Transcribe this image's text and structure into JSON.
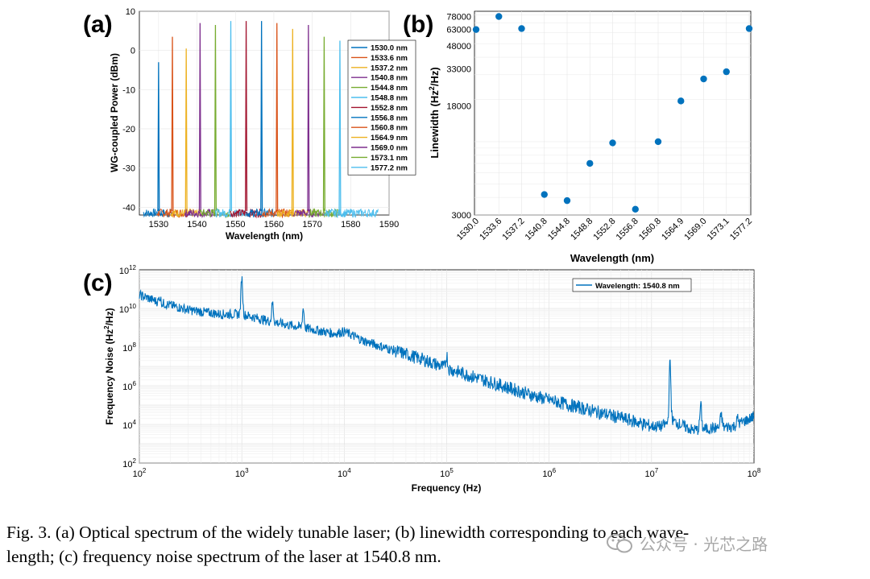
{
  "figure": {
    "caption_line1": "Fig. 3. (a) Optical spectrum of the widely tunable laser; (b) linewidth corresponding to each wave-",
    "caption_line2": "length; (c) frequency noise spectrum of the laser at 1540.8 nm.",
    "watermark": "公众号 · 光芯之路"
  },
  "chart_data": [
    {
      "panel": "(a)",
      "type": "line",
      "xlabel": "Wavelength (nm)",
      "ylabel": "WG-coupled Power (dBm)",
      "xlim": [
        1525,
        1590
      ],
      "ylim": [
        -42,
        10
      ],
      "xticks": [
        1530,
        1540,
        1550,
        1560,
        1570,
        1580,
        1590
      ],
      "yticks": [
        10,
        0,
        -10,
        -20,
        -30,
        -40
      ],
      "legend_position": "right",
      "noise_floor_dBm": -41,
      "series": [
        {
          "name": "1530.0 nm",
          "wavelength": 1530.0,
          "peak": -3,
          "color": "#0072BD"
        },
        {
          "name": "1533.6 nm",
          "wavelength": 1533.6,
          "peak": 3.5,
          "color": "#D95319"
        },
        {
          "name": "1537.2 nm",
          "wavelength": 1537.2,
          "peak": 0.5,
          "color": "#EDB120"
        },
        {
          "name": "1540.8 nm",
          "wavelength": 1540.8,
          "peak": 7,
          "color": "#7E2F8E"
        },
        {
          "name": "1544.8 nm",
          "wavelength": 1544.8,
          "peak": 6.5,
          "color": "#77AC30"
        },
        {
          "name": "1548.8 nm",
          "wavelength": 1548.8,
          "peak": 7.5,
          "color": "#4DBEEE"
        },
        {
          "name": "1552.8 nm",
          "wavelength": 1552.8,
          "peak": 7.5,
          "color": "#A2142F"
        },
        {
          "name": "1556.8 nm",
          "wavelength": 1556.8,
          "peak": 7.5,
          "color": "#0072BD"
        },
        {
          "name": "1560.8 nm",
          "wavelength": 1560.8,
          "peak": 7,
          "color": "#D95319"
        },
        {
          "name": "1564.9 nm",
          "wavelength": 1564.9,
          "peak": 5.5,
          "color": "#EDB120"
        },
        {
          "name": "1569.0 nm",
          "wavelength": 1569.0,
          "peak": 6.5,
          "color": "#7E2F8E"
        },
        {
          "name": "1573.1 nm",
          "wavelength": 1573.1,
          "peak": 3.5,
          "color": "#77AC30"
        },
        {
          "name": "1577.2 nm",
          "wavelength": 1577.2,
          "peak": 2.5,
          "color": "#4DBEEE"
        }
      ]
    },
    {
      "panel": "(b)",
      "type": "scatter",
      "xlabel": "Wavelength (nm)",
      "ylabel": "Linewidth (Hz²/Hz)",
      "ylabel_main": "Linewidth (Hz",
      "ylabel_sup": "2",
      "ylabel_end": "/Hz)",
      "yscale": "log",
      "ylim": [
        3000,
        85000
      ],
      "yticks": [
        3000,
        18000,
        33000,
        48000,
        63000,
        78000
      ],
      "categories": [
        "1530.0",
        "1533.6",
        "1537.2",
        "1540.8",
        "1544.8",
        "1548.8",
        "1552.8",
        "1556.8",
        "1560.8",
        "1564.9",
        "1569.0",
        "1573.1",
        "1577.2"
      ],
      "values": [
        63000,
        78000,
        64000,
        4200,
        3800,
        7000,
        9800,
        3300,
        10000,
        19500,
        28000,
        31500,
        64000
      ],
      "color": "#0072BD"
    },
    {
      "panel": "(c)",
      "type": "line",
      "xlabel": "Frequency (Hz)",
      "ylabel": "Frequency Noise (Hz²/Hz)",
      "ylabel_main": "Frequency Noise (Hz",
      "ylabel_sup": "2",
      "ylabel_end": "/Hz)",
      "xscale": "log",
      "yscale": "log",
      "xlim_exp": [
        2,
        8
      ],
      "ylim_exp": [
        2,
        12
      ],
      "xtick_exps": [
        "2",
        "3",
        "4",
        "5",
        "6",
        "7",
        "8"
      ],
      "ytick_exps": [
        "2",
        "4",
        "6",
        "8",
        "10",
        "12"
      ],
      "tick_base": "10",
      "legend": "Wavelength: 1540.8 nm",
      "color": "#0072BD",
      "series": [
        {
          "name": "Wavelength: 1540.8 nm",
          "log_f": [
            2.0,
            2.2,
            2.5,
            2.8,
            3.0,
            3.3,
            3.6,
            3.9,
            4.0,
            4.2,
            4.5,
            4.8,
            5.0,
            5.3,
            5.6,
            5.9,
            6.2,
            6.5,
            6.8,
            7.0,
            7.1,
            7.2,
            7.4,
            7.6,
            7.8,
            8.0
          ],
          "log_s": [
            10.7,
            10.3,
            9.9,
            9.7,
            9.7,
            9.3,
            9.0,
            8.7,
            8.8,
            8.3,
            7.8,
            7.3,
            6.9,
            6.4,
            5.9,
            5.4,
            5.0,
            4.6,
            4.2,
            3.9,
            3.9,
            4.2,
            3.7,
            3.8,
            3.9,
            4.4
          ],
          "peaks": [
            [
              2.2,
              10.6
            ],
            [
              3.0,
              11.6
            ],
            [
              3.3,
              10.3
            ],
            [
              3.6,
              10.0
            ],
            [
              5.0,
              7.6
            ],
            [
              7.18,
              7.2
            ],
            [
              7.48,
              5.0
            ],
            [
              7.68,
              4.5
            ],
            [
              7.84,
              4.3
            ]
          ]
        }
      ]
    }
  ]
}
